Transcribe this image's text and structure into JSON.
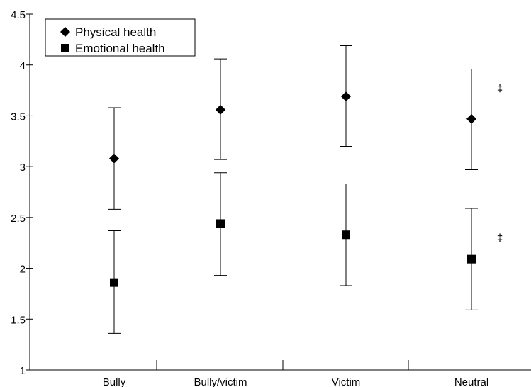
{
  "chart_data": {
    "type": "scatter",
    "title": "",
    "xlabel": "",
    "ylabel": "",
    "categories": [
      "Bully",
      "Bully/victim",
      "Victim",
      "Neutral"
    ],
    "ylim": [
      1,
      4.5
    ],
    "yticks": [
      "1",
      "1.5",
      "2",
      "2.5",
      "3",
      "3.5",
      "4",
      "4.5"
    ],
    "grid": false,
    "legend_position": "top-left",
    "series": [
      {
        "name": "Physical health",
        "marker": "diamond",
        "values": [
          3.08,
          3.56,
          3.69,
          3.47
        ],
        "err_low": [
          2.58,
          3.07,
          3.2,
          2.97
        ],
        "err_high": [
          3.58,
          4.06,
          4.19,
          3.96
        ]
      },
      {
        "name": "Emotional health",
        "marker": "square",
        "values": [
          1.86,
          2.44,
          2.33,
          2.09
        ],
        "err_low": [
          1.36,
          1.93,
          1.83,
          1.59
        ],
        "err_high": [
          2.37,
          2.94,
          2.83,
          2.59
        ]
      }
    ],
    "annotations": [
      {
        "text": "‡",
        "category": "Neutral",
        "y": 3.77
      },
      {
        "text": "‡",
        "category": "Neutral",
        "y": 2.3
      }
    ]
  }
}
